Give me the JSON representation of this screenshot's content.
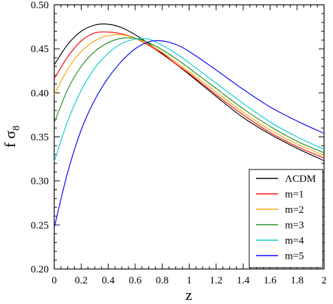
{
  "chart_data": {
    "type": "line",
    "xlabel": "z",
    "ylabel": "f σ8",
    "xlim": [
      0,
      2
    ],
    "ylim": [
      0.2,
      0.5
    ],
    "xticks": [
      "0",
      "0.2",
      "0.4",
      "0.6",
      "0.8",
      "1",
      "1.2",
      "1.4",
      "1.6",
      "1.8",
      "2"
    ],
    "yticks": [
      "0.20",
      "0.25",
      "0.30",
      "0.35",
      "0.40",
      "0.45",
      "0.50"
    ],
    "legend_position": "bottom-right",
    "grid": false,
    "x": [
      0,
      0.1,
      0.2,
      0.3,
      0.4,
      0.5,
      0.6,
      0.7,
      0.8,
      0.9,
      1.0,
      1.2,
      1.4,
      1.6,
      1.8,
      2.0
    ],
    "series": [
      {
        "name": "ΛCDM",
        "color": "#000000",
        "values": [
          0.432,
          0.455,
          0.47,
          0.477,
          0.478,
          0.474,
          0.466,
          0.456,
          0.445,
          0.433,
          0.421,
          0.396,
          0.372,
          0.353,
          0.337,
          0.323
        ]
      },
      {
        "name": "m=1",
        "color": "#ff0000",
        "values": [
          0.416,
          0.441,
          0.459,
          0.468,
          0.469,
          0.467,
          0.462,
          0.454,
          0.444,
          0.433,
          0.422,
          0.398,
          0.375,
          0.355,
          0.339,
          0.326
        ]
      },
      {
        "name": "m=2",
        "color": "#ffa500",
        "values": [
          0.398,
          0.427,
          0.447,
          0.459,
          0.465,
          0.466,
          0.462,
          0.455,
          0.446,
          0.435,
          0.424,
          0.401,
          0.378,
          0.358,
          0.342,
          0.329
        ]
      },
      {
        "name": "m=3",
        "color": "#228b22",
        "values": [
          0.366,
          0.404,
          0.43,
          0.447,
          0.457,
          0.462,
          0.462,
          0.457,
          0.449,
          0.439,
          0.428,
          0.405,
          0.382,
          0.362,
          0.345,
          0.332
        ]
      },
      {
        "name": "m=4",
        "color": "#00cccc",
        "values": [
          0.322,
          0.368,
          0.403,
          0.428,
          0.445,
          0.456,
          0.461,
          0.461,
          0.454,
          0.445,
          0.434,
          0.411,
          0.388,
          0.367,
          0.35,
          0.336
        ]
      },
      {
        "name": "m=5",
        "color": "#0000ff",
        "values": [
          0.247,
          0.31,
          0.358,
          0.392,
          0.417,
          0.436,
          0.45,
          0.458,
          0.459,
          0.455,
          0.447,
          0.426,
          0.404,
          0.384,
          0.368,
          0.354
        ]
      }
    ]
  }
}
